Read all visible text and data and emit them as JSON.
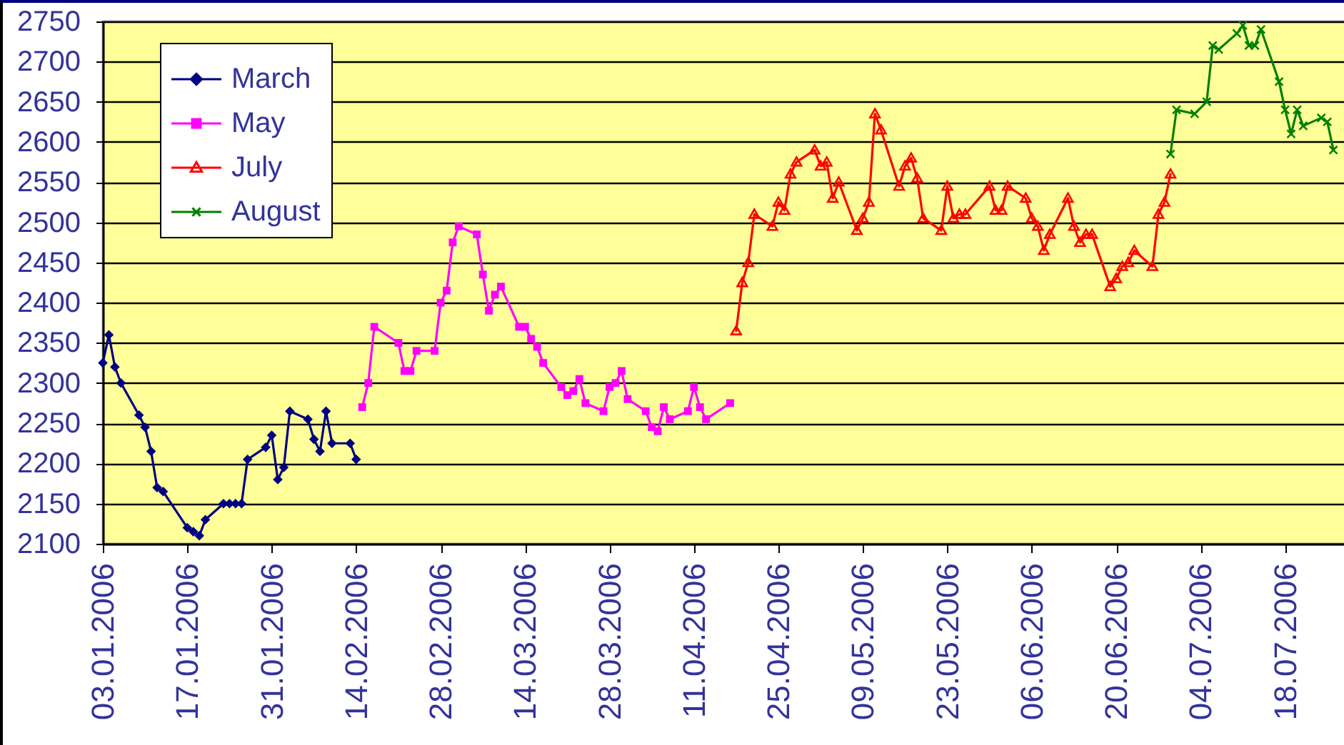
{
  "chart_data": {
    "type": "line",
    "xlim": [
      "2006-01-03",
      "2006-07-28"
    ],
    "xticks": [
      {
        "value": "2006-01-03",
        "label": "03.01.2006"
      },
      {
        "value": "2006-01-17",
        "label": "17.01.2006"
      },
      {
        "value": "2006-01-31",
        "label": "31.01.2006"
      },
      {
        "value": "2006-02-14",
        "label": "14.02.2006"
      },
      {
        "value": "2006-02-28",
        "label": "28.02.2006"
      },
      {
        "value": "2006-03-14",
        "label": "14.03.2006"
      },
      {
        "value": "2006-03-28",
        "label": "28.03.2006"
      },
      {
        "value": "2006-04-11",
        "label": "11.04.2006"
      },
      {
        "value": "2006-04-25",
        "label": "25.04.2006"
      },
      {
        "value": "2006-05-09",
        "label": "09.05.2006"
      },
      {
        "value": "2006-05-23",
        "label": "23.05.2006"
      },
      {
        "value": "2006-06-06",
        "label": "06.06.2006"
      },
      {
        "value": "2006-06-20",
        "label": "20.06.2006"
      },
      {
        "value": "2006-07-04",
        "label": "04.07.2006"
      },
      {
        "value": "2006-07-18",
        "label": "18.07.2006"
      }
    ],
    "ylim": [
      2100,
      2750
    ],
    "yticks": [
      2100,
      2150,
      2200,
      2250,
      2300,
      2350,
      2400,
      2450,
      2500,
      2550,
      2600,
      2650,
      2700,
      2750
    ],
    "grid": "y",
    "legend": "top left",
    "line_style": "solid",
    "series": [
      {
        "name": "March",
        "color": "#000080",
        "marker": "diamond",
        "x": [
          "2006-01-03",
          "2006-01-04",
          "2006-01-05",
          "2006-01-06",
          "2006-01-09",
          "2006-01-10",
          "2006-01-11",
          "2006-01-12",
          "2006-01-13",
          "2006-01-17",
          "2006-01-18",
          "2006-01-19",
          "2006-01-20",
          "2006-01-23",
          "2006-01-24",
          "2006-01-25",
          "2006-01-26",
          "2006-01-27",
          "2006-01-30",
          "2006-01-31",
          "2006-02-01",
          "2006-02-02",
          "2006-02-03",
          "2006-02-06",
          "2006-02-07",
          "2006-02-08",
          "2006-02-09",
          "2006-02-10",
          "2006-02-13",
          "2006-02-14"
        ],
        "values": [
          2325,
          2360,
          2320,
          2300,
          2260,
          2245,
          2215,
          2170,
          2165,
          2120,
          2115,
          2110,
          2130,
          2150,
          2150,
          2150,
          2150,
          2205,
          2220,
          2235,
          2180,
          2195,
          2265,
          2255,
          2230,
          2215,
          2265,
          2225,
          2225,
          2205
        ]
      },
      {
        "name": "May",
        "color": "#ff00ff",
        "marker": "square",
        "x": [
          "2006-02-15",
          "2006-02-16",
          "2006-02-17",
          "2006-02-21",
          "2006-02-22",
          "2006-02-23",
          "2006-02-24",
          "2006-02-27",
          "2006-02-28",
          "2006-03-01",
          "2006-03-02",
          "2006-03-03",
          "2006-03-06",
          "2006-03-07",
          "2006-03-08",
          "2006-03-09",
          "2006-03-10",
          "2006-03-13",
          "2006-03-14",
          "2006-03-15",
          "2006-03-16",
          "2006-03-17",
          "2006-03-20",
          "2006-03-21",
          "2006-03-22",
          "2006-03-23",
          "2006-03-24",
          "2006-03-27",
          "2006-03-28",
          "2006-03-29",
          "2006-03-30",
          "2006-03-31",
          "2006-04-03",
          "2006-04-04",
          "2006-04-05",
          "2006-04-06",
          "2006-04-07",
          "2006-04-10",
          "2006-04-11",
          "2006-04-12",
          "2006-04-13",
          "2006-04-17"
        ],
        "values": [
          2270,
          2300,
          2370,
          2350,
          2315,
          2315,
          2340,
          2340,
          2400,
          2415,
          2475,
          2495,
          2485,
          2435,
          2390,
          2410,
          2420,
          2370,
          2370,
          2355,
          2345,
          2325,
          2295,
          2285,
          2290,
          2305,
          2275,
          2265,
          2295,
          2300,
          2315,
          2280,
          2265,
          2245,
          2240,
          2270,
          2255,
          2265,
          2295,
          2270,
          2255,
          2275
        ]
      },
      {
        "name": "July",
        "color": "#ff0000",
        "marker": "triangle",
        "x": [
          "2006-04-18",
          "2006-04-19",
          "2006-04-20",
          "2006-04-21",
          "2006-04-24",
          "2006-04-25",
          "2006-04-26",
          "2006-04-27",
          "2006-04-28",
          "2006-05-01",
          "2006-05-02",
          "2006-05-03",
          "2006-05-04",
          "2006-05-05",
          "2006-05-08",
          "2006-05-09",
          "2006-05-10",
          "2006-05-11",
          "2006-05-12",
          "2006-05-15",
          "2006-05-16",
          "2006-05-17",
          "2006-05-18",
          "2006-05-19",
          "2006-05-22",
          "2006-05-23",
          "2006-05-24",
          "2006-05-25",
          "2006-05-26",
          "2006-05-30",
          "2006-05-31",
          "2006-06-01",
          "2006-06-02",
          "2006-06-05",
          "2006-06-06",
          "2006-06-07",
          "2006-06-08",
          "2006-06-09",
          "2006-06-12",
          "2006-06-13",
          "2006-06-14",
          "2006-06-15",
          "2006-06-16",
          "2006-06-19",
          "2006-06-20",
          "2006-06-21",
          "2006-06-22",
          "2006-06-23",
          "2006-06-26",
          "2006-06-27",
          "2006-06-28",
          "2006-06-29"
        ],
        "values": [
          2365,
          2425,
          2450,
          2510,
          2495,
          2525,
          2515,
          2560,
          2575,
          2590,
          2570,
          2575,
          2530,
          2550,
          2490,
          2505,
          2525,
          2635,
          2615,
          2545,
          2570,
          2580,
          2555,
          2505,
          2490,
          2545,
          2505,
          2510,
          2510,
          2545,
          2515,
          2515,
          2545,
          2530,
          2505,
          2495,
          2465,
          2485,
          2530,
          2495,
          2475,
          2485,
          2485,
          2420,
          2430,
          2445,
          2450,
          2465,
          2445,
          2510,
          2525,
          2560
        ]
      },
      {
        "name": "August",
        "color": "#008000",
        "marker": "cross",
        "x": [
          "2006-06-29",
          "2006-06-30",
          "2006-07-03",
          "2006-07-05",
          "2006-07-06",
          "2006-07-07",
          "2006-07-10",
          "2006-07-11",
          "2006-07-12",
          "2006-07-13",
          "2006-07-14",
          "2006-07-17",
          "2006-07-18",
          "2006-07-19",
          "2006-07-20",
          "2006-07-21",
          "2006-07-24",
          "2006-07-25",
          "2006-07-26"
        ],
        "values": [
          2585,
          2640,
          2635,
          2650,
          2720,
          2715,
          2735,
          2745,
          2720,
          2720,
          2740,
          2675,
          2640,
          2610,
          2640,
          2620,
          2630,
          2625,
          2590
        ]
      }
    ]
  }
}
